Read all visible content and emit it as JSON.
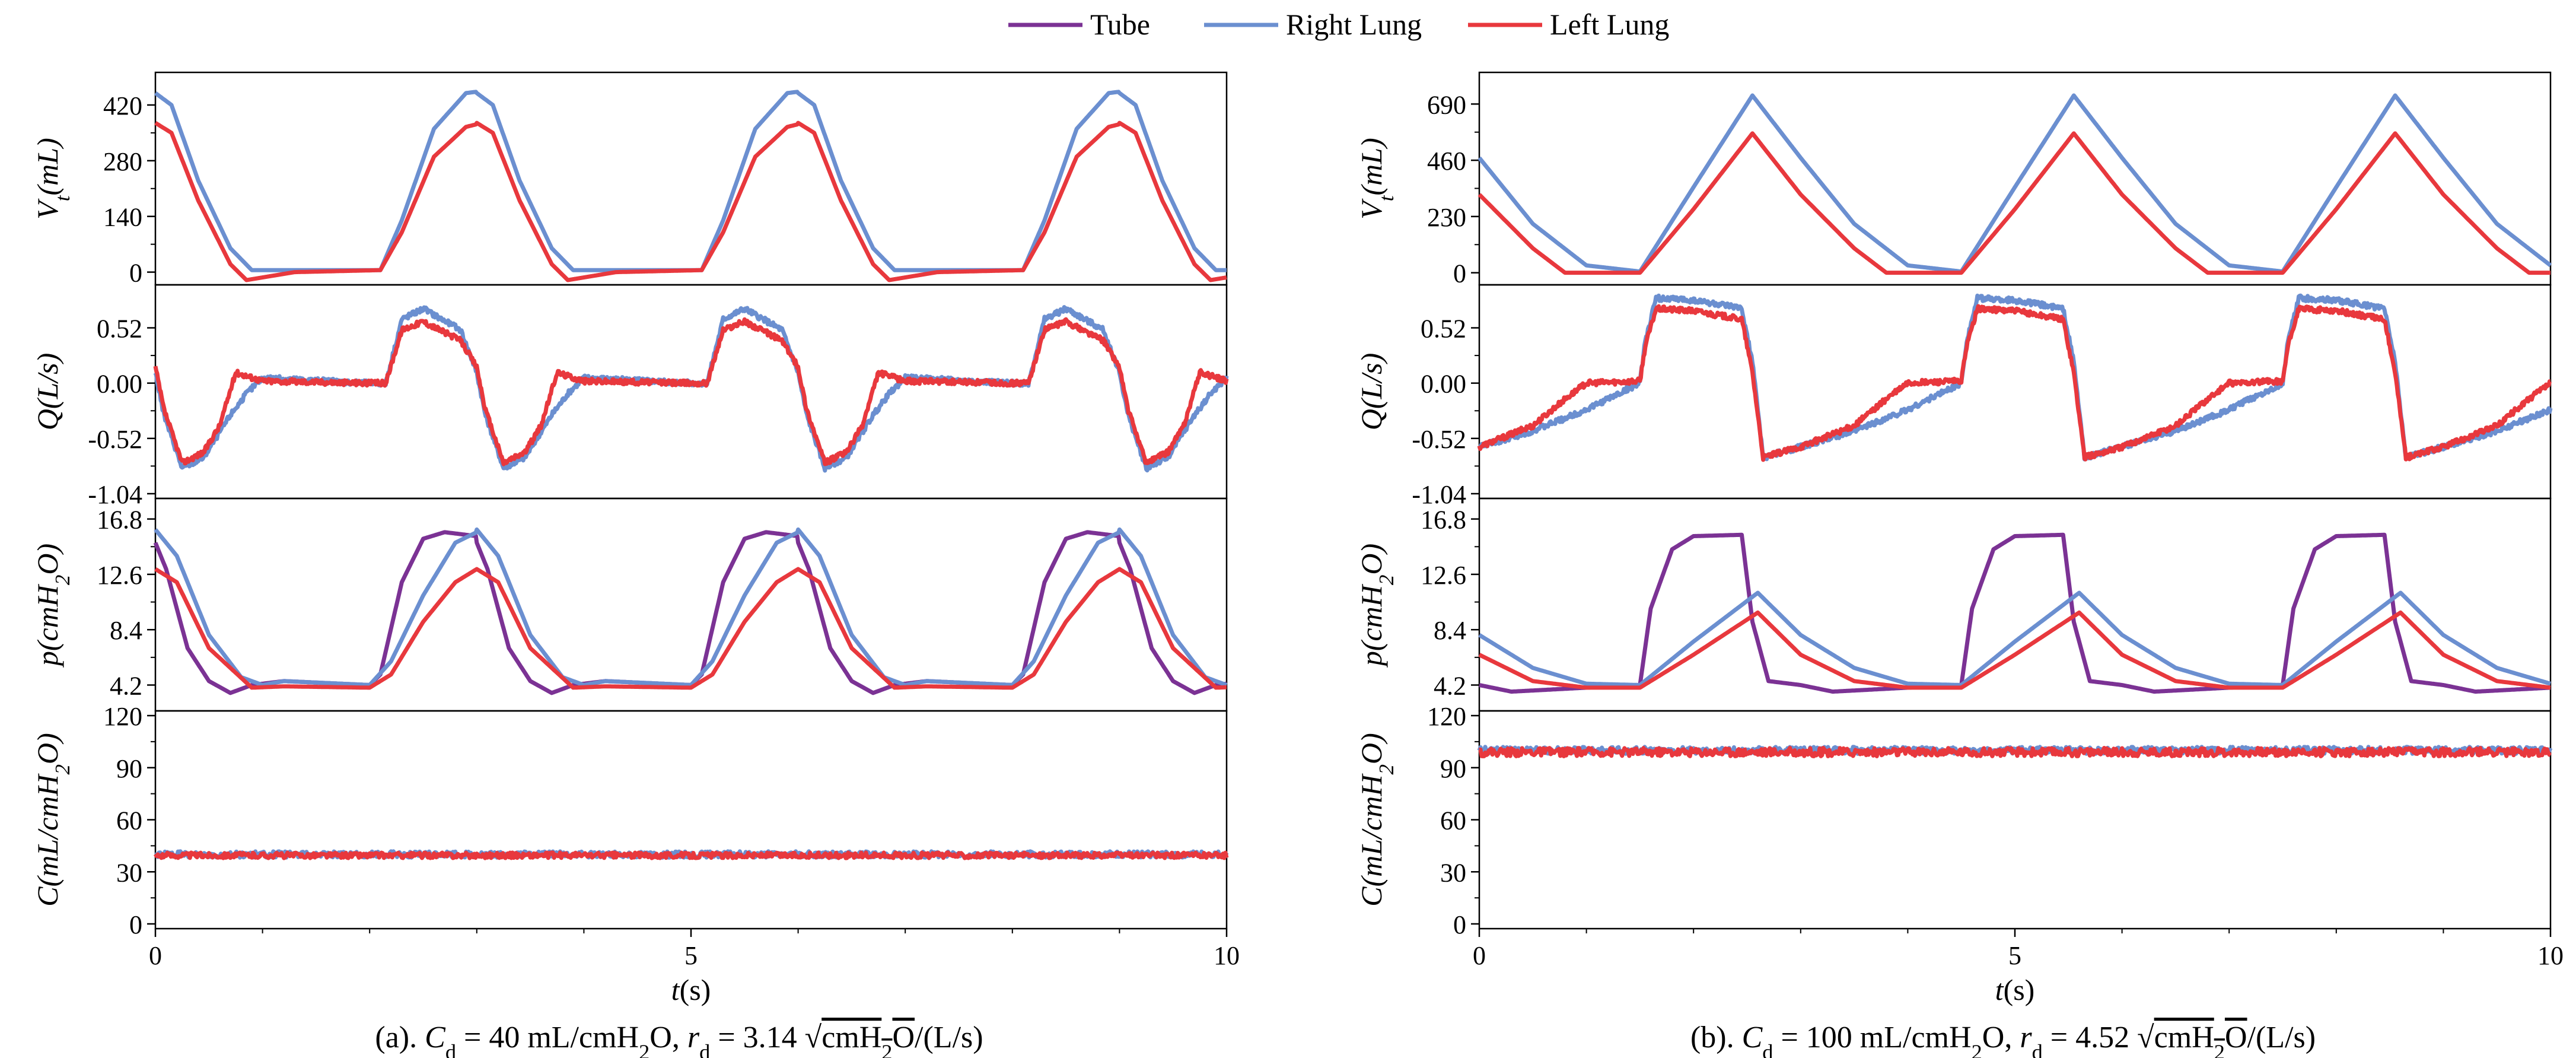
{
  "legend": [
    {
      "label": "Tube",
      "color": "#7b3294"
    },
    {
      "label": "Right Lung",
      "color": "#6b8fd0"
    },
    {
      "label": "Left Lung",
      "color": "#e8383d"
    }
  ],
  "x_axis": {
    "label_var": "t",
    "label_unit": "(s)",
    "range": [
      0,
      10
    ],
    "ticks": [
      0,
      5,
      10
    ]
  },
  "rows": [
    {
      "key": "Vt",
      "ylabel_html": "V<tspan baseline-shift='sub' font-size='70%'>t</tspan>(mL)"
    },
    {
      "key": "Q",
      "ylabel_html": "Q(L/s)"
    },
    {
      "key": "p",
      "ylabel_html": "p(cmH<tspan baseline-shift='sub' font-size='70%'>2</tspan>O)"
    },
    {
      "key": "C",
      "ylabel_html": "C(mL/cmH<tspan baseline-shift='sub' font-size='70%'>2</tspan>O)"
    }
  ],
  "chart_data": [
    {
      "type": "line",
      "title": "(a). Cd = 40 mL/cmH2O, rd = 3.14 √cmH2O/(L/s)",
      "caption": {
        "prefix": "(a). ",
        "cd": "40",
        "rd": "3.14"
      },
      "xlabel": "t(s)",
      "xlim": [
        0,
        10
      ],
      "period": 3.0,
      "subplots": [
        {
          "ylabel": "Vt(mL)",
          "ylim": [
            -20,
            490
          ],
          "yticks": [
            "0",
            "140",
            "280",
            "420"
          ],
          "ytick_values": [
            0,
            140,
            280,
            420
          ],
          "series": [
            {
              "name": "Right Lung",
              "x": [
                0,
                0.15,
                0.4,
                0.7,
                0.9,
                1.5,
                2.1,
                2.3,
                2.6,
                2.9,
                3.05,
                3.15
              ],
              "y": [
                450,
                420,
                230,
                60,
                5,
                5,
                5,
                130,
                360,
                450,
                455,
                420
              ]
            },
            {
              "name": "Left Lung",
              "x": [
                0,
                0.15,
                0.4,
                0.7,
                0.85,
                1.3,
                2.1,
                2.3,
                2.6,
                2.9,
                3.05,
                3.15
              ],
              "y": [
                375,
                350,
                180,
                20,
                -20,
                0,
                5,
                100,
                290,
                365,
                375,
                350
              ]
            }
          ]
        },
        {
          "ylabel": "Q(L/s)",
          "ylim": [
            -1.04,
            0.88
          ],
          "yticks": [
            "-1.04",
            "-0.52",
            "0.00",
            "0.52"
          ],
          "ytick_values": [
            -1.04,
            -0.52,
            0.0,
            0.52
          ],
          "series": [
            {
              "name": "Right Lung",
              "x": [
                0,
                0.08,
                0.25,
                0.45,
                0.7,
                0.85,
                1.0,
                2.0,
                2.15,
                2.3,
                2.5,
                2.85,
                3.0
              ],
              "y": [
                0.1,
                -0.3,
                -0.8,
                -0.7,
                -0.3,
                -0.1,
                0.05,
                0.0,
                0.0,
                0.6,
                0.7,
                0.5,
                0.1
              ]
            },
            {
              "name": "Left Lung",
              "x": [
                0,
                0.08,
                0.25,
                0.45,
                0.6,
                0.75,
                1.0,
                2.0,
                2.15,
                2.3,
                2.5,
                2.85,
                3.0
              ],
              "y": [
                0.15,
                -0.25,
                -0.75,
                -0.65,
                -0.4,
                0.1,
                0.02,
                0.0,
                0.0,
                0.5,
                0.58,
                0.4,
                0.15
              ]
            }
          ]
        },
        {
          "ylabel": "p(cmH2O)",
          "ylim": [
            2.6,
            18.0
          ],
          "yticks": [
            "4.2",
            "8.4",
            "12.6",
            "16.8"
          ],
          "ytick_values": [
            4.2,
            8.4,
            12.6,
            16.8
          ],
          "series": [
            {
              "name": "Tube",
              "x": [
                0,
                0.1,
                0.3,
                0.5,
                0.7,
                0.9,
                1.2,
                2.0,
                2.1,
                2.3,
                2.5,
                2.7,
                3.0
              ],
              "y": [
                15,
                13,
                7,
                4.5,
                3.6,
                4.2,
                4.5,
                4.2,
                5,
                12,
                15.3,
                15.8,
                15.5
              ]
            },
            {
              "name": "Right Lung",
              "x": [
                0,
                0.2,
                0.5,
                0.8,
                1.0,
                1.2,
                2.0,
                2.2,
                2.5,
                2.8,
                3.0
              ],
              "y": [
                16,
                14,
                8,
                4.8,
                4.2,
                4.5,
                4.2,
                6,
                11,
                15,
                15.8
              ]
            },
            {
              "name": "Left Lung",
              "x": [
                0,
                0.2,
                0.5,
                0.9,
                1.2,
                2.0,
                2.2,
                2.5,
                2.8,
                3.0
              ],
              "y": [
                13,
                12,
                7,
                4,
                4.1,
                4.0,
                5,
                9,
                12,
                13
              ]
            }
          ]
        },
        {
          "ylabel": "C(mL/cmH2O)",
          "ylim": [
            0,
            120
          ],
          "yticks": [
            "0",
            "30",
            "60",
            "90",
            "120"
          ],
          "ytick_values": [
            0,
            30,
            60,
            90,
            120
          ],
          "series": [
            {
              "name": "Right Lung",
              "x": [
                0,
                10
              ],
              "y": [
                40,
                40
              ],
              "noise": 1.8
            },
            {
              "name": "Left Lung",
              "x": [
                0,
                10
              ],
              "y": [
                39.5,
                39.5
              ],
              "noise": 1.6
            }
          ]
        }
      ]
    },
    {
      "type": "line",
      "title": "(b). Cd = 100 mL/cmH2O, rd = 4.52 √cmH2O/(L/s)",
      "caption": {
        "prefix": "(b). ",
        "cd": "100",
        "rd": "4.52"
      },
      "xlabel": "t(s)",
      "xlim": [
        0,
        10
      ],
      "period": 3.0,
      "subplots": [
        {
          "ylabel": "Vt(mL)",
          "ylim": [
            -30,
            800
          ],
          "yticks": [
            "0",
            "230",
            "460",
            "690"
          ],
          "ytick_values": [
            0,
            230,
            460,
            690
          ],
          "series": [
            {
              "name": "Right Lung",
              "x": [
                0,
                0.5,
                1.0,
                1.5,
                2.0,
                2.55,
                3.0
              ],
              "y": [
                470,
                200,
                30,
                5,
                350,
                725,
                470
              ]
            },
            {
              "name": "Left Lung",
              "x": [
                0,
                0.5,
                0.8,
                1.5,
                2.0,
                2.55,
                3.0
              ],
              "y": [
                320,
                100,
                0,
                0,
                260,
                570,
                320
              ]
            }
          ]
        },
        {
          "ylabel": "Q(L/s)",
          "ylim": [
            -1.04,
            0.88
          ],
          "yticks": [
            "-1.04",
            "-0.52",
            "0.00",
            "0.52"
          ],
          "ytick_values": [
            -1.04,
            -0.52,
            0.0,
            0.52
          ],
          "series": [
            {
              "name": "Right Lung",
              "x": [
                0,
                0.5,
                1.0,
                1.4,
                1.5,
                1.55,
                1.65,
                2.0,
                2.45,
                2.55,
                2.65,
                3.0
              ],
              "y": [
                -0.6,
                -0.45,
                -0.25,
                -0.05,
                0.0,
                0.4,
                0.8,
                0.78,
                0.7,
                0.2,
                -0.7,
                -0.6
              ]
            },
            {
              "name": "Left Lung",
              "x": [
                0,
                0.5,
                0.8,
                1.0,
                1.5,
                1.55,
                1.65,
                2.0,
                2.45,
                2.55,
                2.65,
                3.0
              ],
              "y": [
                -0.6,
                -0.4,
                -0.15,
                0.0,
                0.02,
                0.35,
                0.7,
                0.68,
                0.6,
                0.1,
                -0.7,
                -0.6
              ]
            }
          ]
        },
        {
          "ylabel": "p(cmH2O)",
          "ylim": [
            2.6,
            18.0
          ],
          "yticks": [
            "4.2",
            "8.4",
            "12.6",
            "16.8"
          ],
          "ytick_values": [
            4.2,
            8.4,
            12.6,
            16.8
          ],
          "series": [
            {
              "name": "Tube",
              "x": [
                0,
                0.3,
                1.0,
                1.5,
                1.6,
                1.8,
                2.0,
                2.45,
                2.55,
                2.7,
                3.0
              ],
              "y": [
                4.2,
                3.7,
                4.0,
                4.2,
                10,
                14.5,
                15.5,
                15.6,
                9,
                4.5,
                4.2
              ]
            },
            {
              "name": "Right Lung",
              "x": [
                0,
                0.5,
                1.0,
                1.5,
                2.0,
                2.6,
                3.0
              ],
              "y": [
                8,
                5.5,
                4.3,
                4.2,
                7.5,
                11.2,
                8
              ]
            },
            {
              "name": "Left Lung",
              "x": [
                0,
                0.5,
                1.0,
                1.5,
                2.0,
                2.6,
                3.0
              ],
              "y": [
                6.5,
                4.5,
                4.0,
                4.0,
                6.5,
                9.7,
                6.5
              ]
            }
          ]
        },
        {
          "ylabel": "C(mL/cmH2O)",
          "ylim": [
            0,
            120
          ],
          "yticks": [
            "0",
            "30",
            "60",
            "90",
            "120"
          ],
          "ytick_values": [
            0,
            30,
            60,
            90,
            120
          ],
          "series": [
            {
              "name": "Right Lung",
              "x": [
                0,
                10
              ],
              "y": [
                100,
                100
              ],
              "noise": 2.0
            },
            {
              "name": "Left Lung",
              "x": [
                0,
                10
              ],
              "y": [
                99,
                99
              ],
              "noise": 2.4
            }
          ]
        }
      ]
    }
  ]
}
